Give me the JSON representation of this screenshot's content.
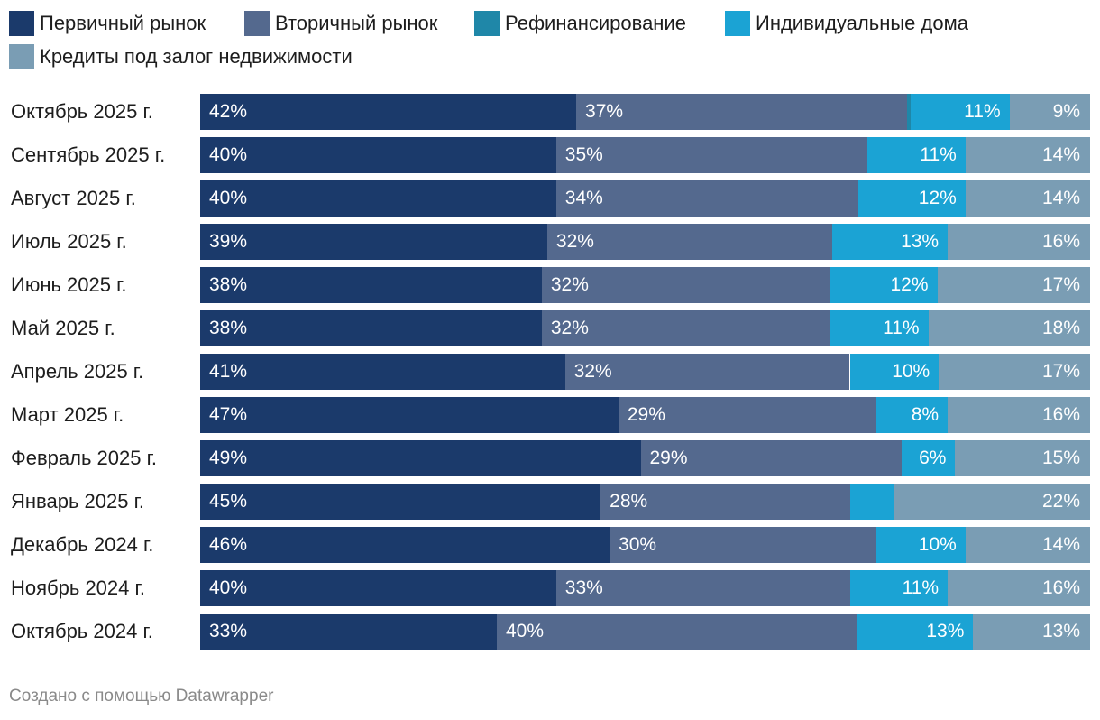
{
  "chart_data": {
    "type": "bar",
    "orientation": "horizontal",
    "stacked": true,
    "normalized": "percent",
    "title": "",
    "xlabel": "",
    "ylabel": "",
    "xlim": [
      0,
      100
    ],
    "legend_position": "top-left",
    "categories": [
      "Октябрь 2025 г.",
      "Сентябрь 2025 г.",
      "Август 2025 г.",
      "Июль 2025 г.",
      "Июнь 2025 г.",
      "Май 2025 г.",
      "Апрель 2025 г.",
      "Март 2025 г.",
      "Февраль 2025 г.",
      "Январь 2025 г.",
      "Декабрь 2024 г.",
      "Ноябрь 2024 г.",
      "Октябрь 2024 г."
    ],
    "series": [
      {
        "name": "Первичный рынок",
        "color": "#1b3a6b",
        "values": [
          42,
          40,
          40,
          39,
          38,
          38,
          41,
          47,
          49,
          45,
          46,
          40,
          33
        ],
        "labels": [
          "42%",
          "40%",
          "40%",
          "39%",
          "38%",
          "38%",
          "41%",
          "47%",
          "49%",
          "45%",
          "46%",
          "40%",
          "33%"
        ]
      },
      {
        "name": "Вторичный рынок",
        "color": "#54698e",
        "values": [
          37,
          35,
          34,
          32,
          32,
          32,
          32,
          29,
          29,
          28,
          30,
          33,
          40
        ],
        "labels": [
          "37%",
          "35%",
          "34%",
          "32%",
          "32%",
          "32%",
          "32%",
          "29%",
          "29%",
          "28%",
          "30%",
          "33%",
          "40%"
        ]
      },
      {
        "name": "Рефинансирование",
        "color": "#1f87a8",
        "values": [
          0.4,
          0,
          0,
          0,
          0,
          0,
          0,
          0,
          0,
          0,
          0,
          0,
          0
        ],
        "labels": [
          "",
          "",
          "",
          "",
          "",
          "",
          "",
          "",
          "",
          "",
          "",
          "",
          ""
        ]
      },
      {
        "name": "Индивидуальные дома",
        "color": "#1ba3d4",
        "values": [
          11,
          11,
          12,
          13,
          12,
          11,
          10,
          8,
          6,
          5,
          10,
          11,
          13
        ],
        "labels": [
          "11%",
          "11%",
          "12%",
          "13%",
          "12%",
          "11%",
          "10%",
          "8%",
          "6%",
          "",
          "10%",
          "11%",
          "13%"
        ]
      },
      {
        "name": "Кредиты под залог недвижимости",
        "color": "#7a9db4",
        "values": [
          9,
          14,
          14,
          16,
          17,
          18,
          17,
          16,
          15,
          22,
          14,
          16,
          13
        ],
        "labels": [
          "9%",
          "14%",
          "14%",
          "16%",
          "17%",
          "18%",
          "17%",
          "16%",
          "15%",
          "22%",
          "14%",
          "16%",
          "13%"
        ]
      }
    ]
  },
  "footer": "Создано с помощью Datawrapper"
}
